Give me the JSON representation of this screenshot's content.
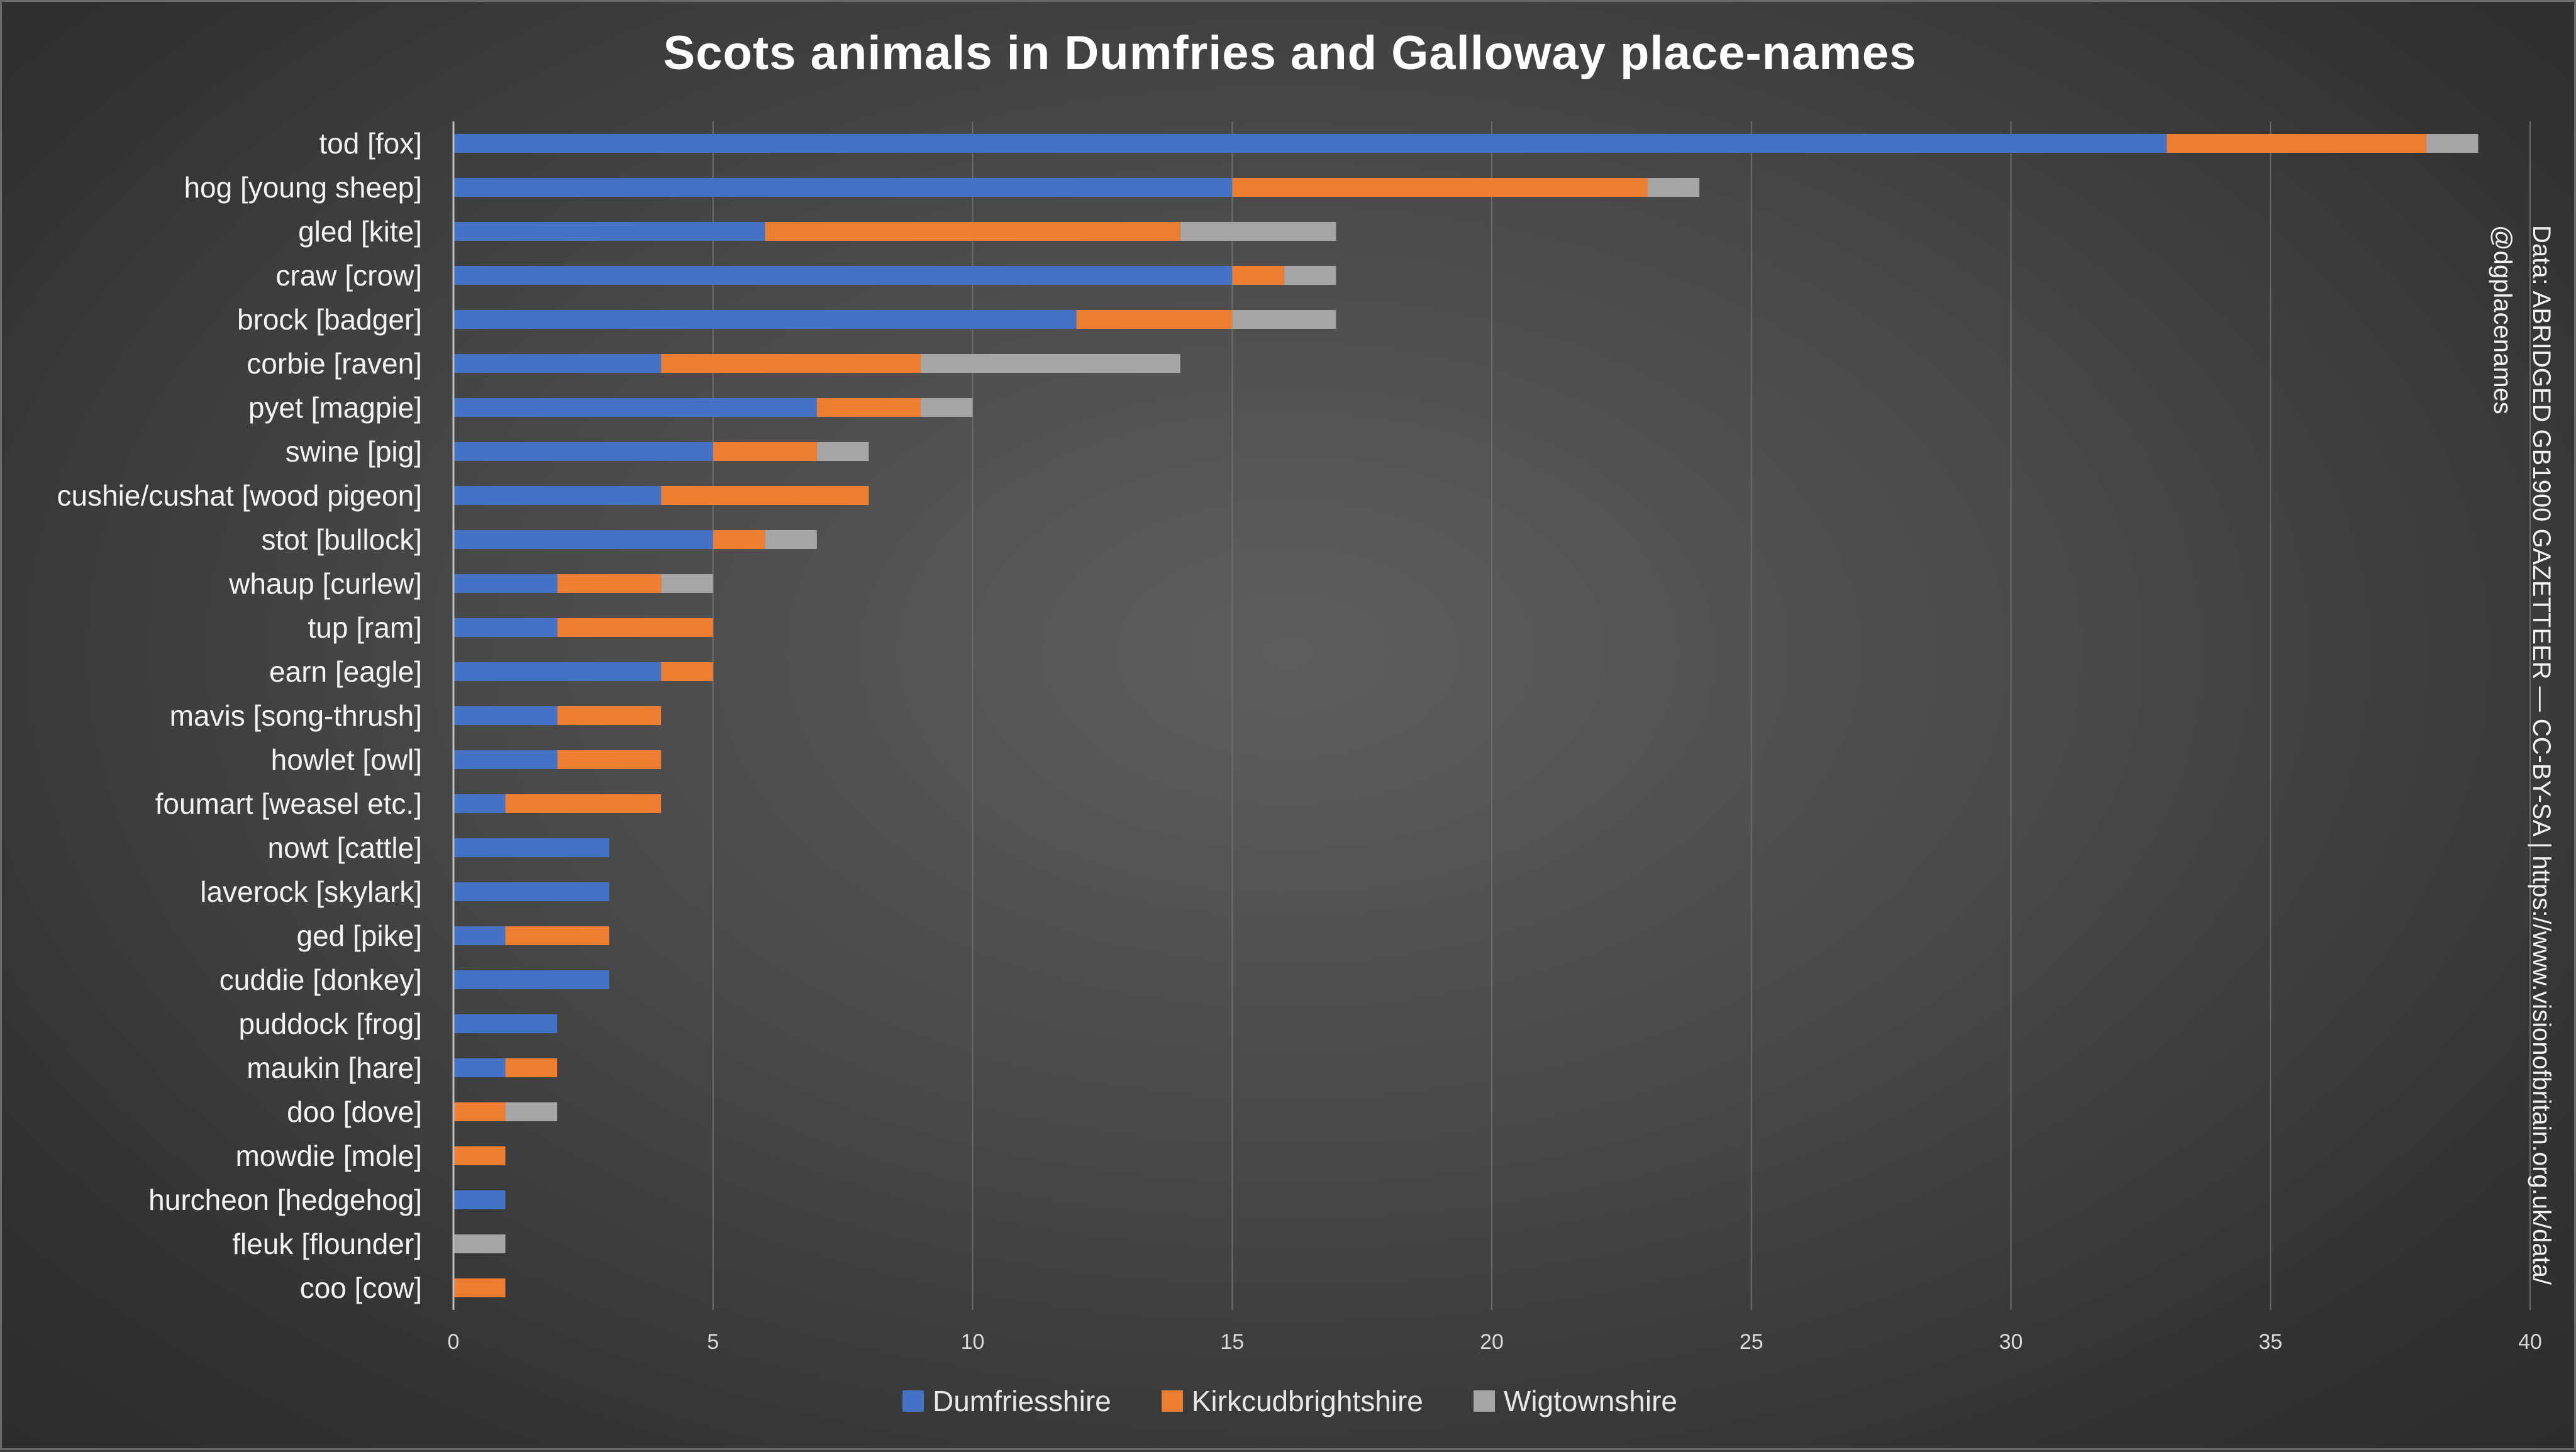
{
  "title": "Scots animals in Dumfries and Galloway place-names",
  "source": {
    "line1": "Data: ABRIDGED GB1900 GAZETTEER — CC-BY-SA | https://www.visionofbritain.org.uk/data/",
    "line2": "@dgplacenames"
  },
  "colors": {
    "Dumfriesshire": "#4472c4",
    "Kirkcudbrightshire": "#ed7d31",
    "Wigtownshire": "#a5a5a5"
  },
  "chart_data": {
    "type": "bar",
    "orientation": "horizontal",
    "stacked": true,
    "title": "Scots animals in Dumfries and Galloway place-names",
    "xlabel": "",
    "ylabel": "",
    "xlim": [
      0,
      40
    ],
    "xticks": [
      0,
      5,
      10,
      15,
      20,
      25,
      30,
      35,
      40
    ],
    "grid": true,
    "legend_position": "bottom",
    "categories": [
      "tod [fox]",
      "hog [young sheep]",
      "gled [kite]",
      "craw [crow]",
      "brock [badger]",
      "corbie [raven]",
      "pyet [magpie]",
      "swine [pig]",
      "cushie/cushat [wood pigeon]",
      "stot [bullock]",
      "whaup [curlew]",
      "tup [ram]",
      "earn [eagle]",
      "mavis [song-thrush]",
      "howlet [owl]",
      "foumart [weasel etc.]",
      "nowt [cattle]",
      "laverock [skylark]",
      "ged [pike]",
      "cuddie [donkey]",
      "puddock [frog]",
      "maukin [hare]",
      "doo [dove]",
      "mowdie [mole]",
      "hurcheon [hedgehog]",
      "fleuk [flounder]",
      "coo [cow]"
    ],
    "series": [
      {
        "name": "Dumfriesshire",
        "values": [
          33,
          15,
          6,
          15,
          12,
          4,
          7,
          5,
          4,
          5,
          2,
          2,
          4,
          2,
          2,
          1,
          3,
          3,
          1,
          3,
          2,
          1,
          0,
          0,
          1,
          0,
          0
        ]
      },
      {
        "name": "Kirkcudbrightshire",
        "values": [
          5,
          8,
          8,
          1,
          3,
          5,
          2,
          2,
          4,
          1,
          2,
          3,
          1,
          2,
          2,
          3,
          0,
          0,
          2,
          0,
          0,
          1,
          1,
          1,
          0,
          0,
          1
        ]
      },
      {
        "name": "Wigtownshire",
        "values": [
          1,
          1,
          3,
          1,
          2,
          5,
          1,
          1,
          0,
          1,
          1,
          0,
          0,
          0,
          0,
          0,
          0,
          0,
          0,
          0,
          0,
          0,
          1,
          0,
          0,
          1,
          0
        ]
      }
    ]
  }
}
